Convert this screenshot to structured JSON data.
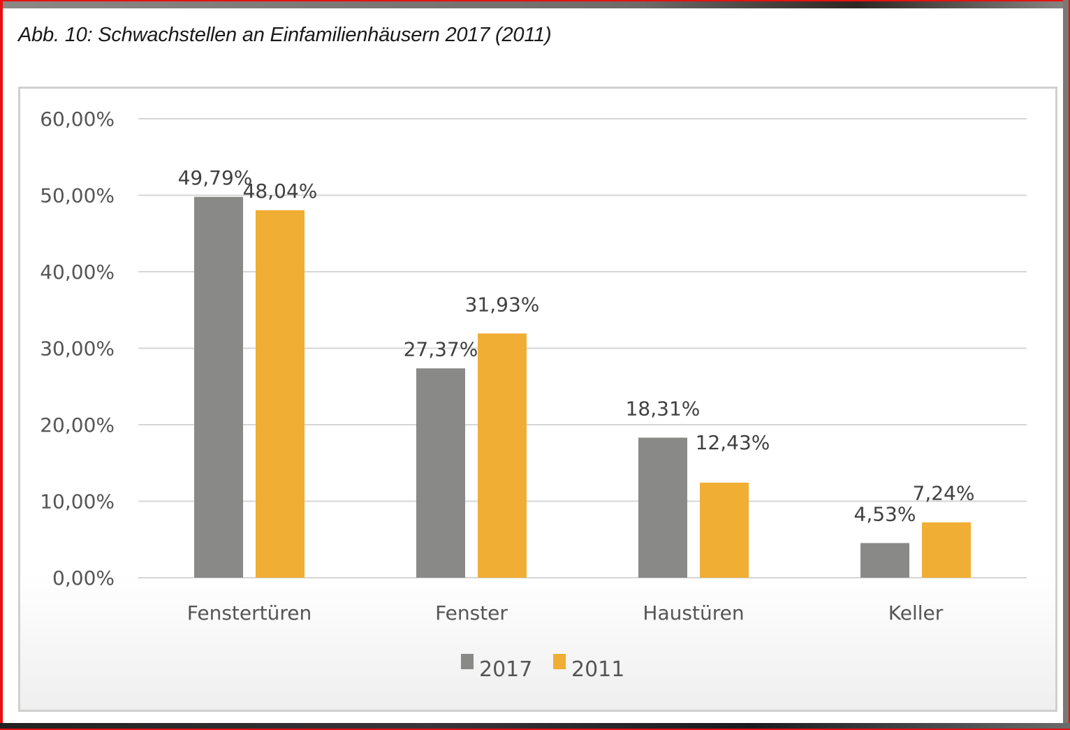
{
  "figure": {
    "title": "Abb. 10: Schwachstellen an Einfamilienhäusern 2017 (2011)"
  },
  "chart_data": {
    "type": "bar",
    "title": "Abb. 10: Schwachstellen an Einfamilienhäusern 2017 (2011)",
    "xlabel": "",
    "ylabel": "",
    "categories": [
      "Fenstertüren",
      "Fenster",
      "Haustüren",
      "Keller"
    ],
    "series": [
      {
        "name": "2017",
        "color": "#898a87",
        "values": [
          49.79,
          27.37,
          18.31,
          4.53
        ],
        "labels": [
          "49,79%",
          "27,37%",
          "18,31%",
          "4,53%"
        ]
      },
      {
        "name": "2011",
        "color": "#f0ae34",
        "values": [
          48.04,
          31.93,
          12.43,
          7.24
        ],
        "labels": [
          "48,04%",
          "31,93%",
          "12,43%",
          "7,24%"
        ]
      }
    ],
    "ylim": [
      0,
      60
    ],
    "yticks": [
      0,
      10,
      20,
      30,
      40,
      50,
      60
    ],
    "ytick_labels": [
      "0,00%",
      "10,00%",
      "20,00%",
      "30,00%",
      "40,00%",
      "50,00%",
      "60,00%"
    ],
    "grid": true,
    "legend": {
      "position": "bottom-center",
      "entries": [
        "2017",
        "2011"
      ]
    }
  }
}
